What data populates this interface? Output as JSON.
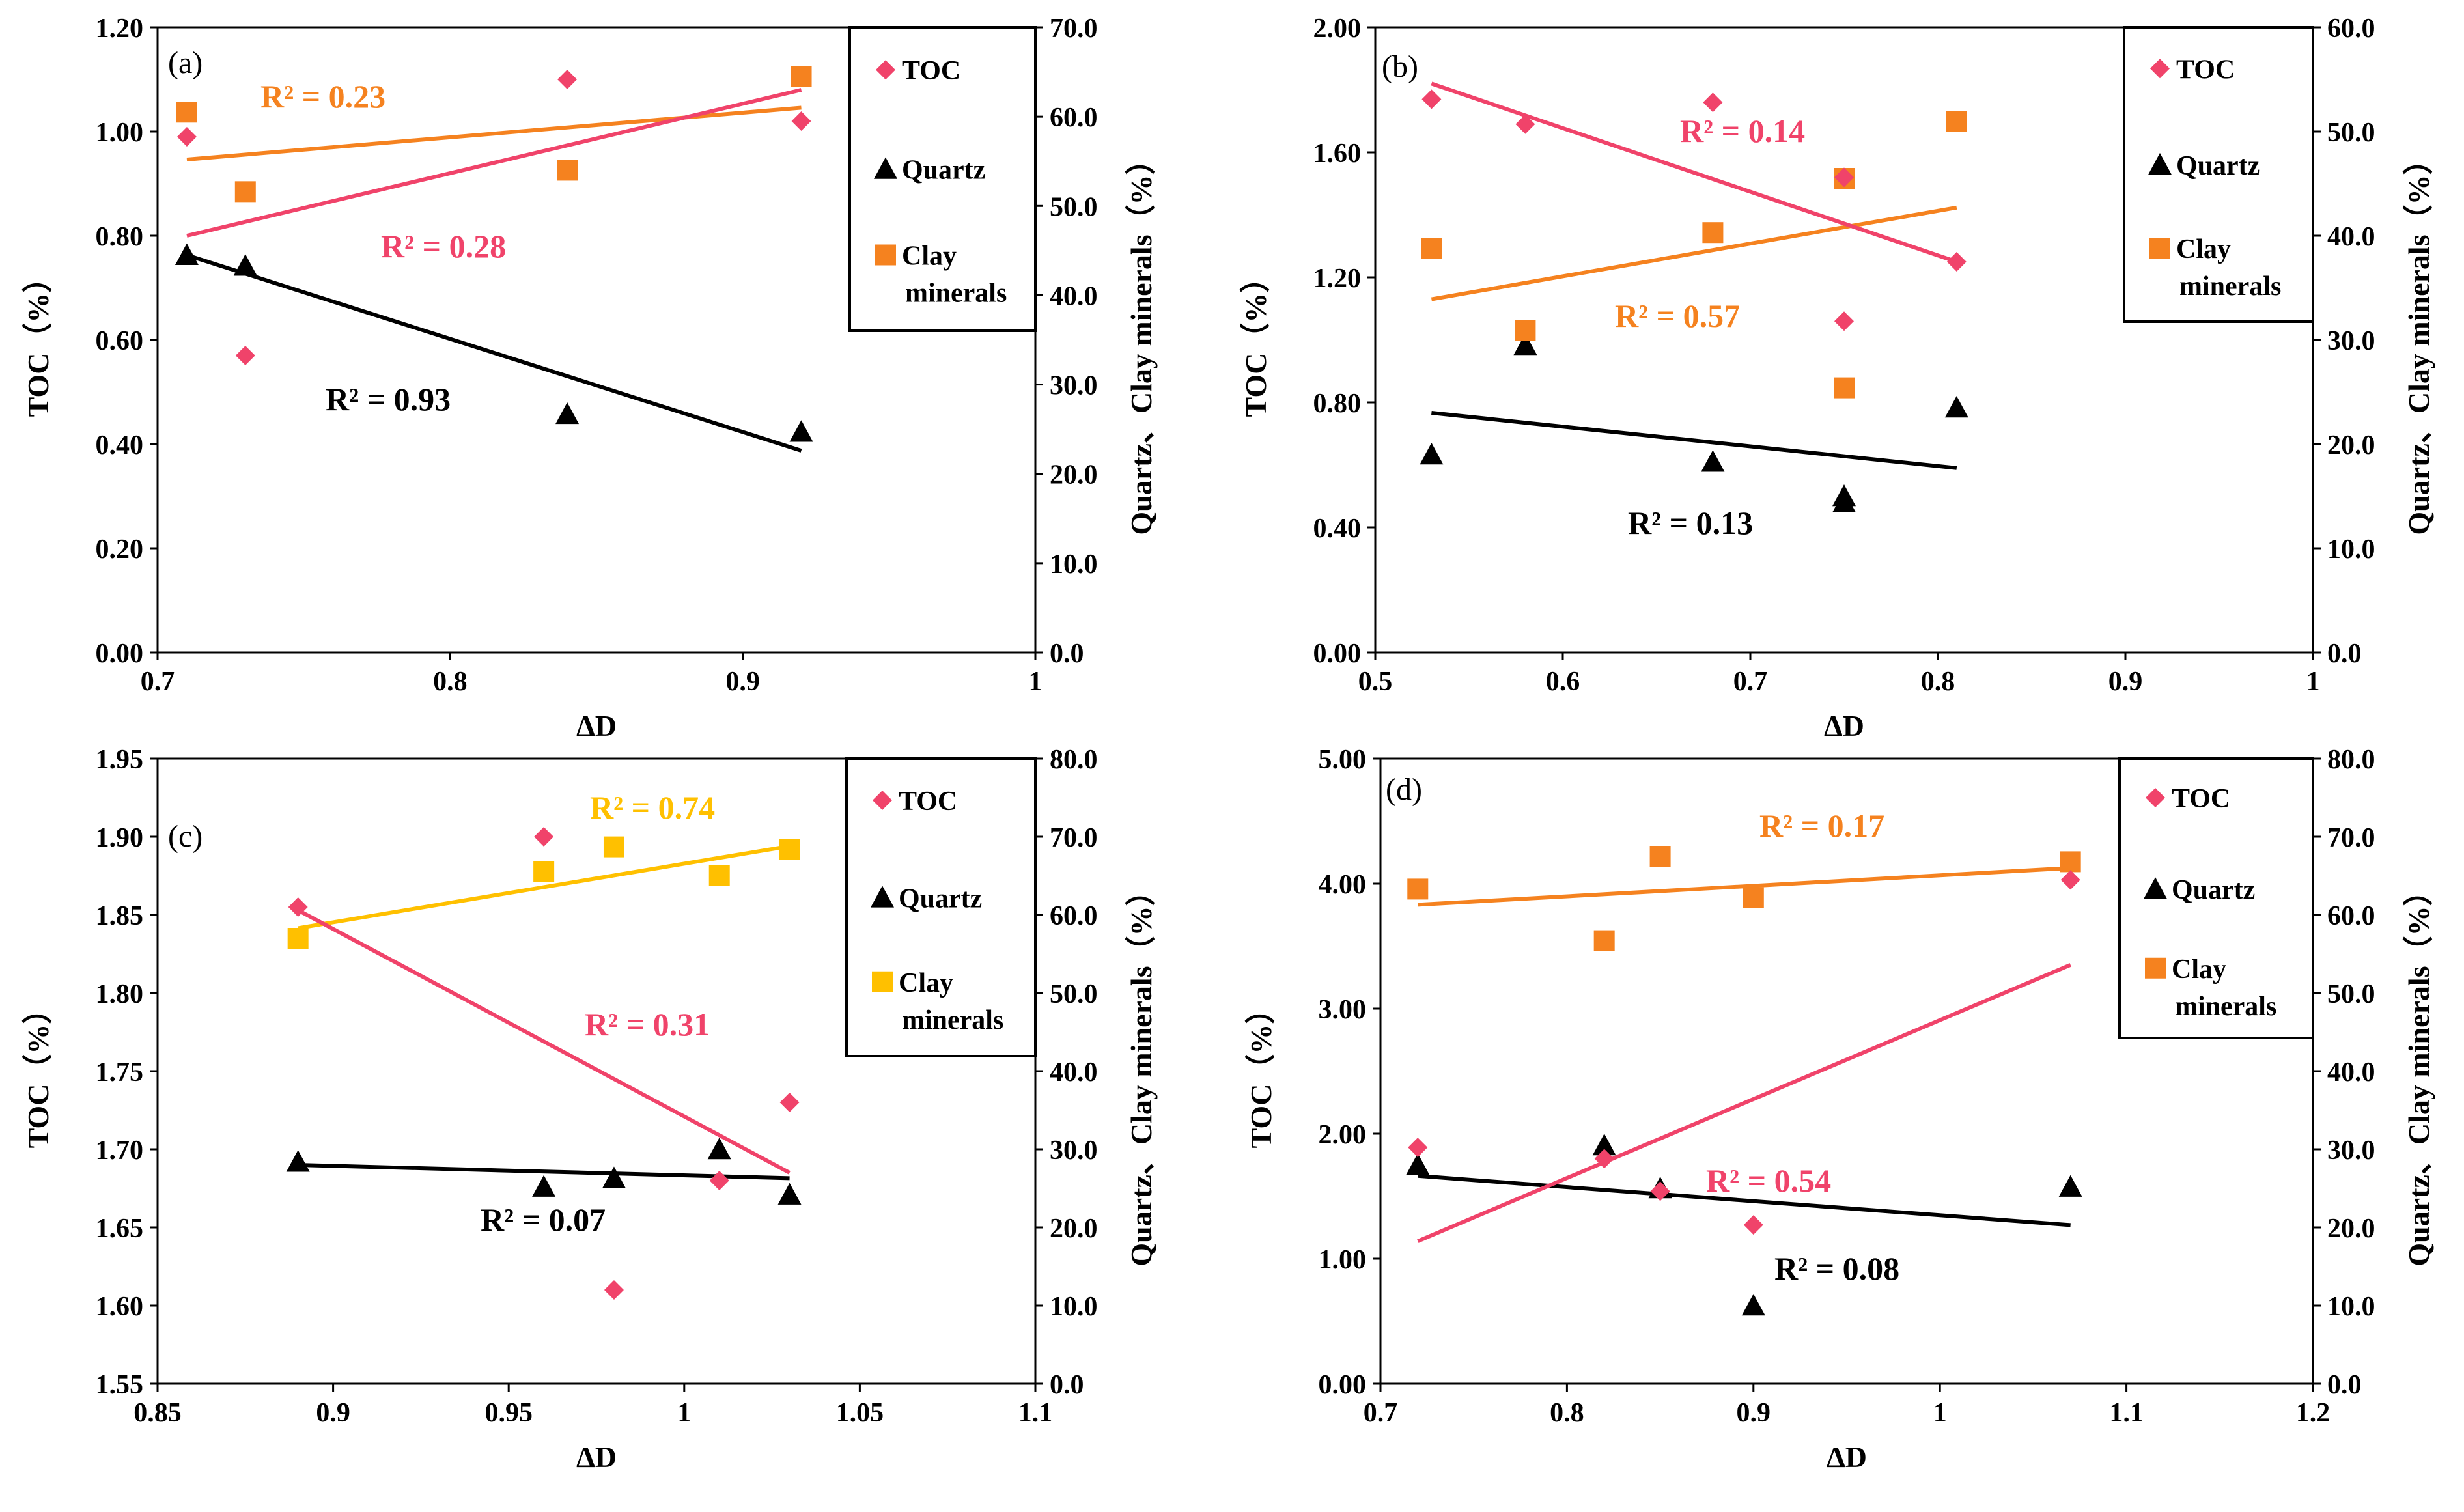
{
  "figure": {
    "x_axis_label": "ΔD",
    "y_left_label": "TOC（%）",
    "y_right_label": "Quartz、Clay minerals（%）"
  },
  "colors": {
    "toc": "#F0436A",
    "quartz": "#000000",
    "clay": "#F5821F",
    "clay_c": "#FFC000"
  },
  "legend": {
    "toc": "TOC",
    "quartz": "Quartz",
    "clay_line1": "Clay",
    "clay_line2": "minerals"
  },
  "chart_data": [
    {
      "type": "scatter",
      "panel": "(a)",
      "xlim": [
        0.7,
        1
      ],
      "x_ticks": [
        "0.7",
        "0.8",
        "0.9",
        "1"
      ],
      "ylim_left": [
        0,
        1.2
      ],
      "y_left_ticks": [
        "0.00",
        "0.20",
        "0.40",
        "0.60",
        "0.80",
        "1.00",
        "1.20"
      ],
      "ylim_right": [
        0,
        70
      ],
      "y_right_ticks": [
        "0.0",
        "10.0",
        "20.0",
        "30.0",
        "40.0",
        "50.0",
        "60.0",
        "70.0"
      ],
      "series": [
        {
          "name": "TOC",
          "axis": "left",
          "x": [
            0.71,
            0.73,
            0.84,
            0.92
          ],
          "y": [
            0.99,
            0.57,
            1.1,
            1.02
          ],
          "fit": [
            [
              0.71,
              0.8
            ],
            [
              0.92,
              1.08
            ]
          ],
          "r2": "R² = 0.28"
        },
        {
          "name": "Quartz",
          "axis": "right",
          "x": [
            0.71,
            0.73,
            0.84,
            0.92
          ],
          "y": [
            44.5,
            43.3,
            26.7,
            24.7
          ],
          "fit": [
            [
              0.71,
              44.5
            ],
            [
              0.92,
              22.6
            ]
          ],
          "r2": "R² = 0.93"
        },
        {
          "name": "Clay minerals",
          "axis": "right",
          "x": [
            0.71,
            0.73,
            0.84,
            0.92
          ],
          "y": [
            60.5,
            51.6,
            54.0,
            64.5
          ],
          "fit": [
            [
              0.71,
              55.2
            ],
            [
              0.92,
              61.0
            ]
          ],
          "r2": "R² = 0.23"
        }
      ]
    },
    {
      "type": "scatter",
      "panel": "(b)",
      "xlim": [
        0.5,
        1
      ],
      "x_ticks": [
        "0.5",
        "0.6",
        "0.7",
        "0.8",
        "0.9",
        "1"
      ],
      "ylim_left": [
        0,
        2
      ],
      "y_left_ticks": [
        "0.00",
        "0.40",
        "0.80",
        "1.20",
        "1.60",
        "2.00"
      ],
      "ylim_right": [
        0,
        60
      ],
      "y_right_ticks": [
        "0.0",
        "10.0",
        "20.0",
        "30.0",
        "40.0",
        "50.0",
        "60.0"
      ],
      "series": [
        {
          "name": "TOC",
          "axis": "left",
          "x": [
            0.53,
            0.58,
            0.68,
            0.75,
            0.75,
            0.81
          ],
          "y": [
            1.77,
            1.69,
            1.76,
            1.52,
            1.06,
            1.25
          ],
          "fit": [
            [
              0.53,
              1.82
            ],
            [
              0.81,
              1.25
            ]
          ],
          "r2": "R² = 0.14"
        },
        {
          "name": "Quartz",
          "axis": "right",
          "x": [
            0.53,
            0.58,
            0.68,
            0.75,
            0.75,
            0.81
          ],
          "y": [
            19.0,
            29.5,
            18.3,
            14.4,
            15.0,
            23.5
          ],
          "fit": [
            [
              0.53,
              23.0
            ],
            [
              0.81,
              17.7
            ]
          ],
          "r2": "R² = 0.13"
        },
        {
          "name": "Clay minerals",
          "axis": "right",
          "x": [
            0.53,
            0.58,
            0.68,
            0.75,
            0.75,
            0.81
          ],
          "y": [
            38.8,
            30.9,
            40.3,
            45.5,
            25.4,
            51.0
          ],
          "fit": [
            [
              0.53,
              33.9
            ],
            [
              0.81,
              42.7
            ]
          ],
          "r2": "R² = 0.57"
        }
      ]
    },
    {
      "type": "scatter",
      "panel": "(c)",
      "xlim": [
        0.85,
        1.1
      ],
      "x_ticks": [
        "0.85",
        "0.9",
        "0.95",
        "1",
        "1.05",
        "1.1"
      ],
      "ylim_left": [
        1.55,
        1.95
      ],
      "y_left_ticks": [
        "1.55",
        "1.60",
        "1.65",
        "1.70",
        "1.75",
        "1.80",
        "1.85",
        "1.90",
        "1.95"
      ],
      "ylim_right": [
        0,
        80
      ],
      "y_right_ticks": [
        "0.0",
        "10.0",
        "20.0",
        "30.0",
        "40.0",
        "50.0",
        "60.0",
        "70.0",
        "80.0"
      ],
      "series": [
        {
          "name": "TOC",
          "axis": "left",
          "x": [
            0.89,
            0.96,
            0.98,
            1.01,
            1.03
          ],
          "y": [
            1.855,
            1.9,
            1.61,
            1.68,
            1.73
          ],
          "fit": [
            [
              0.89,
              1.853
            ],
            [
              1.03,
              1.685
            ]
          ],
          "r2": "R² = 0.31"
        },
        {
          "name": "Quartz",
          "axis": "right",
          "x": [
            0.89,
            0.96,
            0.98,
            1.01,
            1.03
          ],
          "y": [
            28.4,
            25.2,
            26.3,
            30.0,
            24.2
          ],
          "fit": [
            [
              0.89,
              28.0
            ],
            [
              1.03,
              26.3
            ]
          ],
          "r2": "R² = 0.07"
        },
        {
          "name": "Clay minerals",
          "axis": "right",
          "x": [
            0.89,
            0.96,
            0.98,
            1.01,
            1.03
          ],
          "y": [
            57.0,
            65.5,
            68.7,
            65.0,
            68.4
          ],
          "fit": [
            [
              0.89,
              58.3
            ],
            [
              1.03,
              68.8
            ]
          ],
          "r2": "R² = 0.74"
        }
      ]
    },
    {
      "type": "scatter",
      "panel": "(d)",
      "xlim": [
        0.7,
        1.2
      ],
      "x_ticks": [
        "0.7",
        "0.8",
        "0.9",
        "1",
        "1.1",
        "1.2"
      ],
      "ylim_left": [
        0,
        5
      ],
      "y_left_ticks": [
        "0.00",
        "1.00",
        "2.00",
        "3.00",
        "4.00",
        "5.00"
      ],
      "ylim_right": [
        0,
        80
      ],
      "y_right_ticks": [
        "0.0",
        "10.0",
        "20.0",
        "30.0",
        "40.0",
        "50.0",
        "60.0",
        "70.0",
        "80.0"
      ],
      "series": [
        {
          "name": "TOC",
          "axis": "left",
          "x": [
            0.72,
            0.82,
            0.85,
            0.9,
            1.07
          ],
          "y": [
            1.89,
            1.8,
            1.54,
            1.27,
            4.03
          ],
          "fit": [
            [
              0.72,
              1.14
            ],
            [
              1.07,
              3.35
            ]
          ],
          "r2": "R² = 0.54"
        },
        {
          "name": "Quartz",
          "axis": "right",
          "x": [
            0.72,
            0.82,
            0.85,
            0.9,
            1.07
          ],
          "y": [
            28.0,
            30.5,
            25.0,
            10.0,
            25.2
          ],
          "fit": [
            [
              0.72,
              26.6
            ],
            [
              1.07,
              20.3
            ]
          ],
          "r2": "R² = 0.08"
        },
        {
          "name": "Clay minerals",
          "axis": "right",
          "x": [
            0.72,
            0.82,
            0.85,
            0.9,
            1.07
          ],
          "y": [
            63.3,
            56.7,
            67.5,
            62.2,
            66.8
          ],
          "fit": [
            [
              0.72,
              61.3
            ],
            [
              1.07,
              66.0
            ]
          ],
          "r2": "R² = 0.17"
        }
      ]
    }
  ]
}
